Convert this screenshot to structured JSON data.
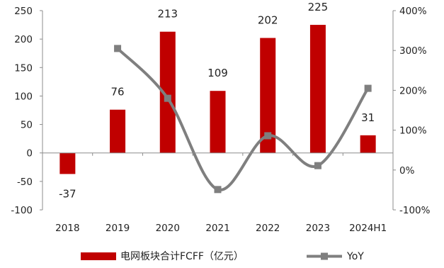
{
  "chart_data": {
    "type": "bar",
    "categories": [
      "2018",
      "2019",
      "2020",
      "2021",
      "2022",
      "2023",
      "2024H1"
    ],
    "series": [
      {
        "name": "电网板块合计FCFF（亿元）",
        "kind": "bar",
        "axis": "left",
        "color": "#C00000",
        "values": [
          -37,
          76,
          213,
          109,
          202,
          225,
          31
        ],
        "labels": [
          "-37",
          "76",
          "213",
          "109",
          "202",
          "225",
          "31"
        ]
      },
      {
        "name": "YoY",
        "kind": "line",
        "axis": "right",
        "color": "#7F7F7F",
        "smooth": true,
        "marker": "square",
        "values": [
          null,
          3.05,
          1.8,
          -0.49,
          0.86,
          0.11,
          2.05
        ]
      }
    ],
    "left_axis": {
      "ylim": [
        -100,
        250
      ],
      "ticks": [
        250,
        200,
        150,
        100,
        50,
        0,
        -50,
        -100
      ],
      "tick_labels": [
        "250",
        "200",
        "150",
        "100",
        "50",
        "0",
        "-50",
        "-100"
      ]
    },
    "right_axis": {
      "ylim": [
        -1,
        4
      ],
      "ticks": [
        4,
        3,
        2,
        1,
        0,
        -1
      ],
      "tick_labels": [
        "400%",
        "300%",
        "200%",
        "100%",
        "0%",
        "-100%"
      ]
    },
    "legend": {
      "placement": "bottom",
      "entries": [
        "电网板块合计FCFF（亿元）",
        "YoY"
      ]
    },
    "grid": false
  }
}
